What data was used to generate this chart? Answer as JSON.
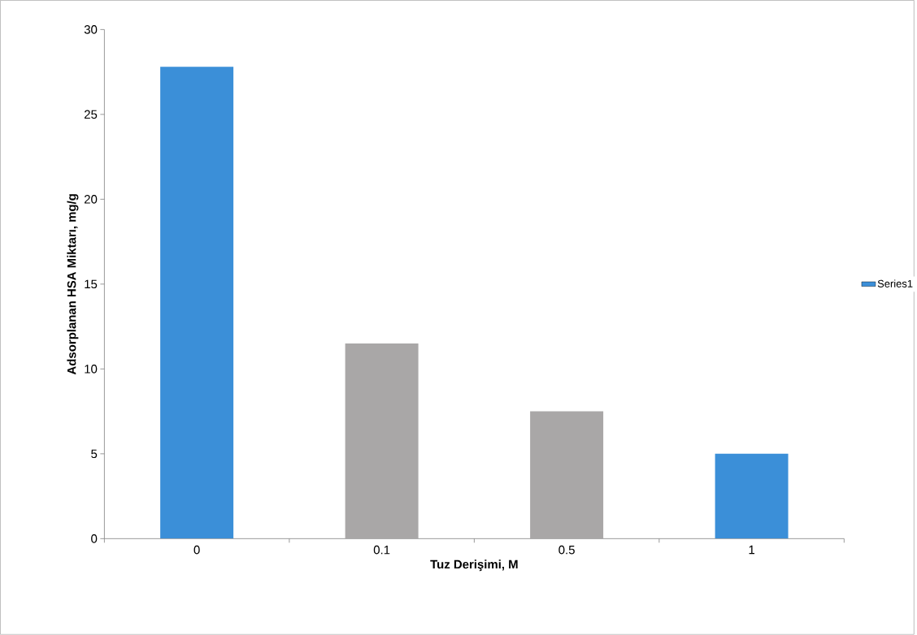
{
  "chart_data": {
    "type": "bar",
    "xlabel": "Tuz Derişimi, M",
    "ylabel": "Adsorplanan HSA Miktarı, mg/g",
    "categories": [
      "0",
      "0.1",
      "0.5",
      "1"
    ],
    "series": [
      {
        "name": "Series1",
        "color": "#3b8fd8",
        "colors": [
          "#3b8fd8",
          "#a9a7a7",
          "#a9a7a7",
          "#3b8fd8"
        ],
        "values": [
          27.8,
          11.5,
          7.5,
          5.0
        ]
      }
    ],
    "ylim": [
      0,
      30
    ],
    "yticks": [
      0,
      5,
      10,
      15,
      20,
      25,
      30
    ],
    "legend": "right",
    "grid": false
  }
}
